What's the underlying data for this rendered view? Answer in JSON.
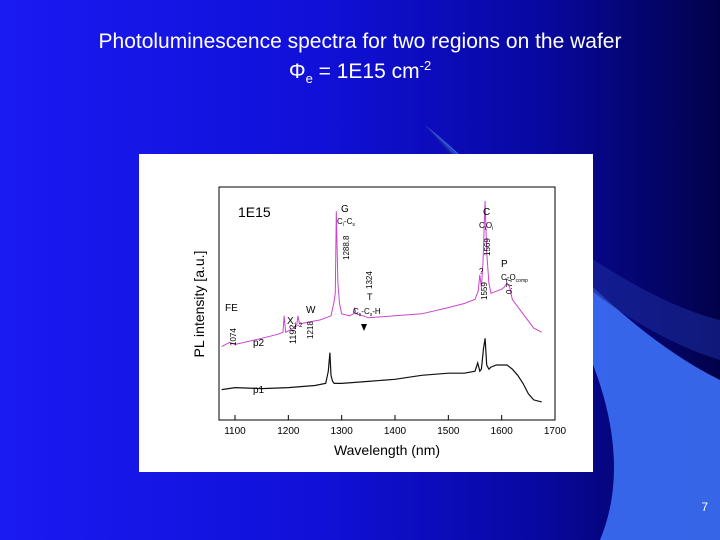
{
  "slide": {
    "title_line1": "Photoluminescence spectra for two regions on the wafer",
    "title_line2_main": "Φ",
    "title_line2_sub": "e",
    "title_line2_mid": " = 1E15 cm",
    "title_line2_sup": "-2",
    "page_number": "7"
  },
  "colors": {
    "p1": "#111111",
    "p2": "#cc44cc"
  },
  "chart_data": {
    "type": "line",
    "title": "1E15",
    "xlabel": "Wavelength (nm)",
    "ylabel": "PL intensity [a.u.]",
    "xlim": [
      1070,
      1700
    ],
    "ylim": [
      0,
      100
    ],
    "xticks": [
      1100,
      1200,
      1300,
      1400,
      1500,
      1600,
      1700
    ],
    "grid": false,
    "series": [
      {
        "name": "p1",
        "x": [
          1075,
          1100,
          1150,
          1200,
          1250,
          1270,
          1275,
          1278,
          1280,
          1283,
          1286,
          1300,
          1350,
          1400,
          1450,
          1500,
          1530,
          1550,
          1555,
          1559,
          1562,
          1566,
          1569,
          1572,
          1576,
          1580,
          1590,
          1600,
          1610,
          1620,
          1630,
          1640,
          1650,
          1660,
          1675
        ],
        "y": [
          8,
          9,
          8.5,
          9,
          10,
          11,
          17,
          26,
          15,
          12,
          11,
          11,
          12,
          13,
          15,
          16,
          16,
          17,
          21,
          17,
          18,
          28,
          33,
          20,
          18,
          19,
          20,
          20,
          20,
          18,
          15,
          11,
          6,
          3,
          2
        ]
      },
      {
        "name": "p2",
        "x": [
          1075,
          1090,
          1100,
          1150,
          1180,
          1190,
          1192,
          1195,
          1210,
          1216,
          1218,
          1221,
          1240,
          1260,
          1270,
          1280,
          1285,
          1288,
          1290,
          1293,
          1296,
          1300,
          1315,
          1322,
          1324,
          1327,
          1340,
          1350,
          1400,
          1450,
          1500,
          1530,
          1550,
          1556,
          1559,
          1562,
          1565,
          1567,
          1569,
          1572,
          1576,
          1580,
          1590,
          1600,
          1605,
          1610,
          1615,
          1620,
          1640,
          1660,
          1675
        ],
        "y": [
          29,
          31,
          30,
          33,
          35,
          36,
          44,
          36,
          38,
          40,
          44,
          40,
          41,
          42,
          43,
          44,
          50,
          55,
          95,
          60,
          50,
          45,
          44,
          45,
          48,
          45,
          44,
          43,
          44,
          45,
          48,
          50,
          52,
          56,
          64,
          58,
          70,
          86,
          100,
          75,
          60,
          55,
          56,
          57,
          58,
          60,
          58,
          52,
          45,
          38,
          36
        ]
      }
    ],
    "annotations": [
      {
        "text": "FE",
        "x": 1074
      },
      {
        "text": "1074",
        "x": 1074
      },
      {
        "text": "X",
        "sub": "1-2",
        "x": 1192
      },
      {
        "text": "1192",
        "x": 1192
      },
      {
        "text": "W",
        "x": 1218
      },
      {
        "text": "1218",
        "x": 1218
      },
      {
        "text": "G",
        "x": 1288.8
      },
      {
        "text": "C",
        "sub": "i",
        "text2": "-C",
        "sub2": "s",
        "x": 1288.8
      },
      {
        "text": "1288.8",
        "x": 1288.8
      },
      {
        "text": "T",
        "x": 1324
      },
      {
        "text": "1324",
        "x": 1324
      },
      {
        "text": "C",
        "sub": "s",
        "text2": "-C",
        "sub2": "s",
        "text3": "-H",
        "x": 1324
      },
      {
        "text": "C",
        "x": 1569
      },
      {
        "text": "C",
        "sub": "i",
        "text2": "O",
        "sub2": "i",
        "x": 1569
      },
      {
        "text": "1569",
        "x": 1569
      },
      {
        "text": "1559",
        "x": 1559
      },
      {
        "text": "?",
        "x": 1559
      },
      {
        "text": "P",
        "x": 1610
      },
      {
        "text": "C-O",
        "sub": "comp",
        "x": 1610
      },
      {
        "text": "0.77",
        "x": 1610
      }
    ]
  }
}
